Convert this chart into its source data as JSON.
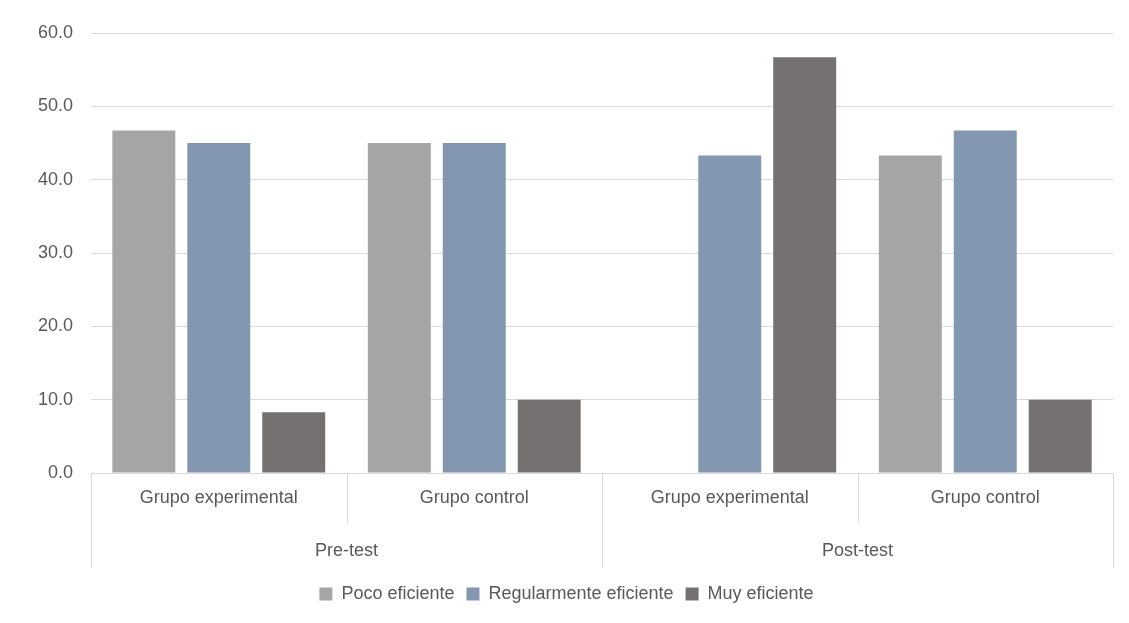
{
  "chart_data": {
    "type": "bar",
    "categories": [
      "Grupo experimental",
      "Grupo control",
      "Grupo experimental",
      "Grupo control"
    ],
    "series": [
      {
        "name": "Poco eficiente",
        "color": "#a5a5a5",
        "values": [
          46.7,
          45.0,
          0,
          43.3
        ]
      },
      {
        "name": "Regularmente eficiente",
        "color": "#8497b0",
        "values": [
          45.0,
          45.0,
          43.3,
          46.7
        ]
      },
      {
        "name": "Muy eficiente",
        "color": "#767171",
        "values": [
          8.3,
          10.0,
          56.7,
          10.0
        ]
      }
    ],
    "ylim": [
      0,
      60
    ],
    "yticks": [
      {
        "value": 0,
        "label": "0.0"
      },
      {
        "value": 10,
        "label": "10.0"
      },
      {
        "value": 20,
        "label": "20.0"
      },
      {
        "value": 30,
        "label": "30.0"
      },
      {
        "value": 40,
        "label": "40.0"
      },
      {
        "value": 50,
        "label": "50.0"
      },
      {
        "value": 60,
        "label": "60.0"
      }
    ],
    "annotations": [
      "Pre-test",
      "Post-test"
    ],
    "grid": "y",
    "legend": "bottom"
  }
}
